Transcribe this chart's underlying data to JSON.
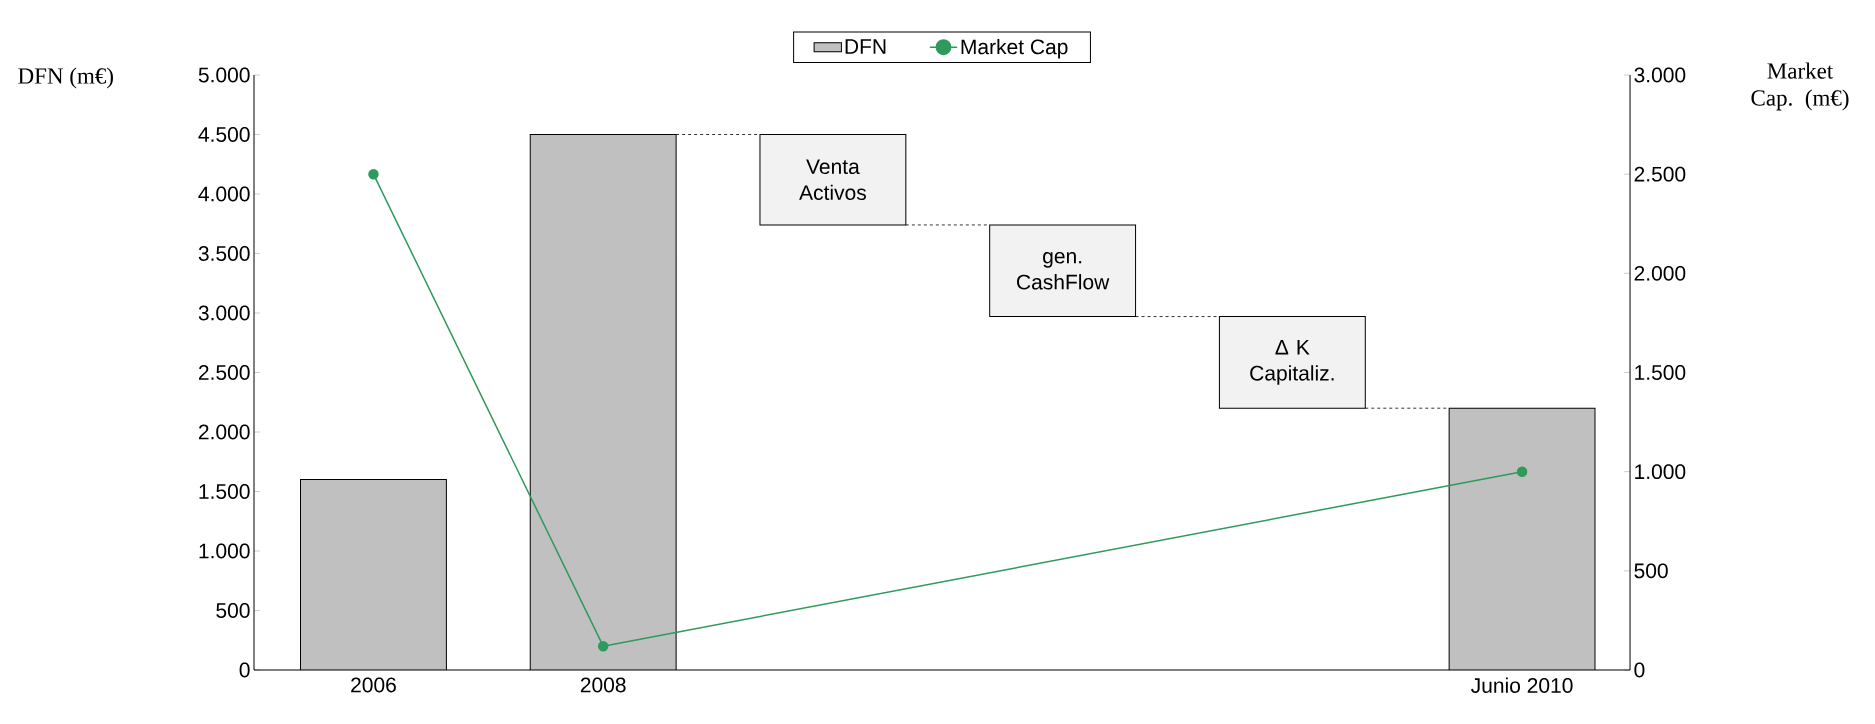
{
  "chart_data": {
    "type": "bar",
    "categories": [
      "2006",
      "2008",
      null,
      null,
      null,
      "Junio 2010"
    ],
    "series": [
      {
        "name": "DFN",
        "color": "#c0c0c0",
        "values": [
          1600,
          4500,
          null,
          null,
          null,
          2200
        ]
      },
      {
        "color": "#f2f2f2",
        "base": [
          null,
          null,
          3740,
          2970,
          2200,
          null
        ],
        "values": [
          null,
          null,
          760,
          770,
          770,
          null
        ]
      },
      {
        "name": "Market Cap",
        "type": "line",
        "axis": "y2",
        "color": "#2e9a5c",
        "marker": "circle",
        "values": [
          2500,
          120,
          null,
          null,
          null,
          1000
        ]
      }
    ],
    "annotations": [
      "Venta Activos",
      "gen. CashFlow",
      "Δ K Capitaliz."
    ],
    "ylabel": "DFN (m€)",
    "y2label": "Market Cap. (m€)",
    "ylim": [
      0,
      5000
    ],
    "yticks": [
      0,
      500,
      {
        "value": 1000,
        "label": "1.000"
      },
      {
        "value": 1500,
        "label": "1.500"
      },
      {
        "value": 2000,
        "label": "2.000"
      },
      {
        "value": 2500,
        "label": "2.500"
      },
      {
        "value": 3000,
        "label": "3.000"
      },
      {
        "value": 3500,
        "label": "3.500"
      },
      {
        "value": 4000,
        "label": "4.000"
      },
      {
        "value": 4500,
        "label": "4.500"
      },
      {
        "value": 5000,
        "label": "5.000"
      }
    ],
    "y2lim": [
      0,
      3000
    ],
    "y2ticks": [
      0,
      500,
      {
        "value": 1000,
        "label": "1.000"
      },
      {
        "value": 1500,
        "label": "1.500"
      },
      {
        "value": 2000,
        "label": "2.000"
      },
      {
        "value": 2500,
        "label": "2.500"
      },
      {
        "value": 3000,
        "label": "3.000"
      }
    ],
    "legend": "top"
  }
}
